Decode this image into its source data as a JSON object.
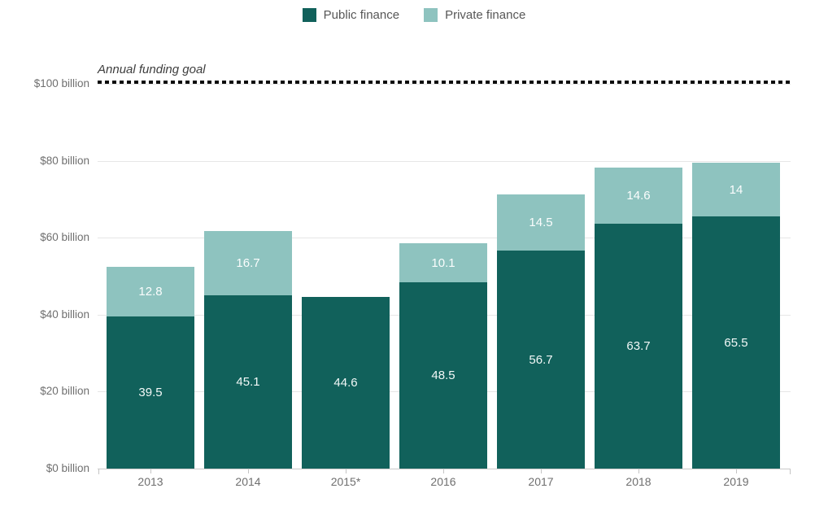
{
  "chart_data": {
    "type": "bar",
    "stacked": true,
    "title": "",
    "categories": [
      "2013",
      "2014",
      "2015*",
      "2016",
      "2017",
      "2018",
      "2019"
    ],
    "series": [
      {
        "name": "Public finance",
        "color": "#11615b",
        "values": [
          39.5,
          45.1,
          44.6,
          48.5,
          56.7,
          63.7,
          65.5
        ],
        "labels": [
          "39.5",
          "45.1",
          "44.6",
          "48.5",
          "56.7",
          "63.7",
          "65.5"
        ]
      },
      {
        "name": "Private finance",
        "color": "#8ec3bf",
        "values": [
          12.8,
          16.7,
          null,
          10.1,
          14.5,
          14.6,
          14
        ],
        "labels": [
          "12.8",
          "16.7",
          "",
          "10.1",
          "14.5",
          "14.6",
          "14"
        ]
      }
    ],
    "y_ticks": [
      {
        "value": 0,
        "label": "$0 billion"
      },
      {
        "value": 20,
        "label": "$20 billion"
      },
      {
        "value": 40,
        "label": "$40 billion"
      },
      {
        "value": 60,
        "label": "$60 billion"
      },
      {
        "value": 80,
        "label": "$80 billion"
      },
      {
        "value": 100,
        "label": "$100 billion"
      }
    ],
    "ylim": [
      0,
      100
    ],
    "xlabel": "",
    "ylabel": "",
    "grid": true,
    "legend_position": "top",
    "goal_line": {
      "value": 100,
      "label": "Annual funding goal",
      "style": "dotted",
      "color": "#0c0c0c"
    }
  },
  "colors": {
    "public_finance": "#11615b",
    "private_finance": "#8ec3bf",
    "goal_line": "#0c0c0c",
    "gridline": "#e6e6e6",
    "axis_line": "#c9c9c9",
    "axis_text": "#6f6f6f",
    "value_label": "#f2f8f7",
    "background": "#ffffff"
  }
}
